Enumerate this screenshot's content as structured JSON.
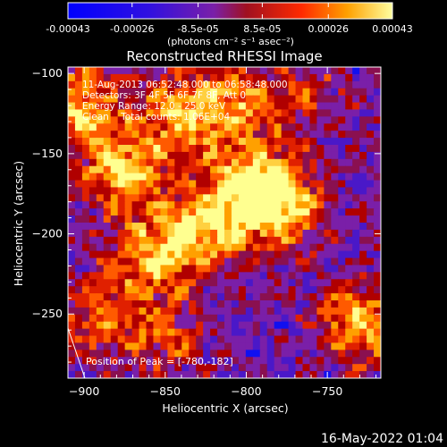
{
  "colorbar": {
    "tick_labels": [
      "-0.00043",
      "-0.00026",
      "-8.5e-05",
      "8.5e-05",
      "0.00026",
      "0.00043"
    ],
    "tick_values": [
      -0.00043,
      -0.00026,
      -8.5e-05,
      8.5e-05,
      0.00026,
      0.00043
    ],
    "range": [
      -0.00043,
      0.00043
    ],
    "units_label": "(photons cm⁻² s⁻¹ asec⁻²)"
  },
  "footer": {
    "timestamp": "16-May-2022 01:04"
  },
  "chart_data": {
    "type": "heatmap",
    "title": "Reconstructed RHESSI Image",
    "xlabel": "Heliocentric X (arcsec)",
    "ylabel": "Heliocentric Y (arcsec)",
    "xlim": [
      -910,
      -717
    ],
    "ylim": [
      -290,
      -96
    ],
    "x_ticks": [
      -900,
      -850,
      -800,
      -750
    ],
    "y_ticks": [
      -250,
      -200,
      -150,
      -100
    ],
    "x_tick_labels": [
      "−900",
      "−850",
      "−800",
      "−750"
    ],
    "y_tick_labels": [
      "−250",
      "−200",
      "−150",
      "−100"
    ],
    "annotations": [
      "11-Aug-2013 06:52:48.000 to 06:58:48.000",
      "Detectors: 3F 4F 5F 6F 7F 8F, Att 0",
      "Energy Range: 12.0 - 25.0 keV",
      "Clean    Total counts: 1.06E+04"
    ],
    "peak_label": "Position of Peak = [-780,-182]",
    "peak_position": [
      -780,
      -182
    ],
    "colors": {
      "negative": "#0000ff",
      "neutral": "#7a1fa8",
      "positive": [
        "#b00000",
        "#ff3a00",
        "#ffa000",
        "#ffff70"
      ]
    },
    "sources": [
      {
        "x": -905,
        "y": -120,
        "intensity": 0.85
      },
      {
        "x": -875,
        "y": -160,
        "intensity": 0.95
      },
      {
        "x": -840,
        "y": -125,
        "intensity": 0.75
      },
      {
        "x": -830,
        "y": -200,
        "intensity": 0.9
      },
      {
        "x": -800,
        "y": -170,
        "intensity": 0.8
      },
      {
        "x": -780,
        "y": -182,
        "intensity": 1.0
      },
      {
        "x": -860,
        "y": -215,
        "intensity": 0.65
      },
      {
        "x": -890,
        "y": -250,
        "intensity": 0.6
      },
      {
        "x": -730,
        "y": -255,
        "intensity": 0.85
      },
      {
        "x": -805,
        "y": -120,
        "intensity": 0.7
      },
      {
        "x": -850,
        "y": -265,
        "intensity": 0.45
      },
      {
        "x": -760,
        "y": -110,
        "intensity": 0.35
      }
    ]
  }
}
